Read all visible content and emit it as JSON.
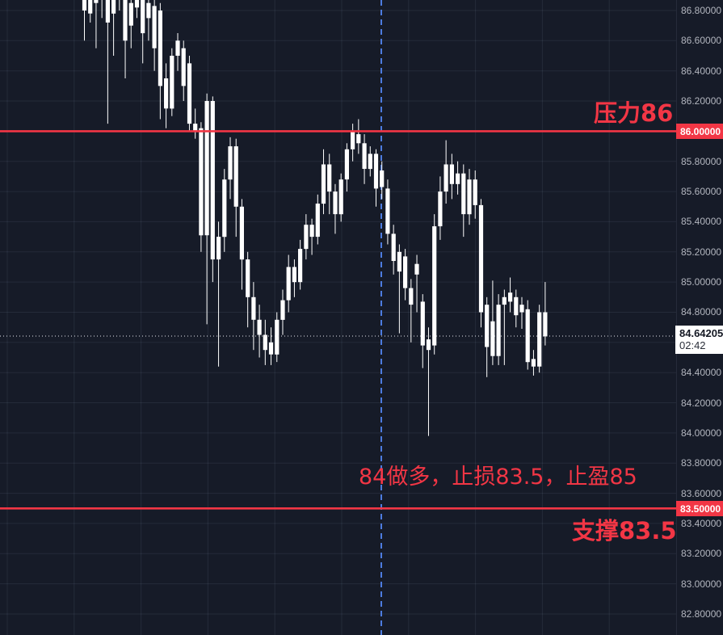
{
  "annotations": {
    "resistance_text": "压力86",
    "trade_note": "84做多，止损83.5，止盈85",
    "support_text": "支撑83.5"
  },
  "price_axis": {
    "tick_labels": [
      "86.80000",
      "86.60000",
      "86.40000",
      "86.20000",
      "85.80000",
      "85.60000",
      "85.40000",
      "85.20000",
      "85.00000",
      "84.80000",
      "84.40000",
      "84.20000",
      "84.00000",
      "83.80000",
      "83.60000",
      "83.40000",
      "83.20000",
      "83.00000",
      "82.80000"
    ],
    "resistance_tag": "86.00000",
    "support_tag": "83.50000",
    "last_price_tag": "84.64205",
    "last_price_time": "02:42"
  },
  "colors": {
    "background": "#161b28",
    "grid": "rgba(170,183,213,0.10)",
    "candle": "#ffffff",
    "level_red": "#f23645",
    "vline_blue": "#4d7ce0",
    "axis_text": "#b2b5be",
    "current_price_dotted": "#e8eaf0"
  },
  "chart_data": {
    "type": "candlestick",
    "title": "",
    "xlabel": "",
    "ylabel": "price",
    "ylim": [
      82.67,
      86.87
    ],
    "price_step": 0.2,
    "grid": true,
    "legend_position": "none",
    "levels": [
      {
        "name": "resistance",
        "price": 86.0,
        "label": "压力86"
      },
      {
        "name": "support",
        "price": 83.5,
        "label": "支撑83.5"
      }
    ],
    "last": {
      "price": 84.64205,
      "countdown": "02:42"
    },
    "vline_at_index": 51,
    "candles_ohlc_note": "values are [open,high,low,close]; all candles rendered white (direction not color-coded on this chart)",
    "candles": [
      [
        86.92,
        86.95,
        86.6,
        86.8
      ],
      [
        86.9,
        86.94,
        86.72,
        86.78
      ],
      [
        86.95,
        86.97,
        86.55,
        86.85
      ],
      [
        86.93,
        86.96,
        86.75,
        86.88
      ],
      [
        86.9,
        86.93,
        86.05,
        86.72
      ],
      [
        86.88,
        86.92,
        86.5,
        86.78
      ],
      [
        86.95,
        86.97,
        86.8,
        86.87
      ],
      [
        86.9,
        86.93,
        86.35,
        86.6
      ],
      [
        86.85,
        86.9,
        86.55,
        86.7
      ],
      [
        86.92,
        86.95,
        86.75,
        86.82
      ],
      [
        86.88,
        86.92,
        86.45,
        86.65
      ],
      [
        86.85,
        86.9,
        86.6,
        86.75
      ],
      [
        86.83,
        86.88,
        86.4,
        86.55
      ],
      [
        86.8,
        86.85,
        86.08,
        86.3
      ],
      [
        86.35,
        86.45,
        86.02,
        86.15
      ],
      [
        86.15,
        86.55,
        86.1,
        86.5
      ],
      [
        86.5,
        86.65,
        86.4,
        86.6
      ],
      [
        86.55,
        86.6,
        86.2,
        86.3
      ],
      [
        86.45,
        86.5,
        86.0,
        86.05
      ],
      [
        86.05,
        86.15,
        85.95,
        86.0
      ],
      [
        86.02,
        86.06,
        85.2,
        85.31
      ],
      [
        85.31,
        86.25,
        84.72,
        86.2
      ],
      [
        86.2,
        86.23,
        85.0,
        85.15
      ],
      [
        85.15,
        85.4,
        84.44,
        85.3
      ],
      [
        85.3,
        85.75,
        85.2,
        85.68
      ],
      [
        85.68,
        85.96,
        85.55,
        85.9
      ],
      [
        85.9,
        85.95,
        85.3,
        85.5
      ],
      [
        85.5,
        85.55,
        84.95,
        85.15
      ],
      [
        85.15,
        85.2,
        84.7,
        84.9
      ],
      [
        84.9,
        85.0,
        84.55,
        84.75
      ],
      [
        84.75,
        84.85,
        84.5,
        84.65
      ],
      [
        84.65,
        84.75,
        84.45,
        84.55
      ],
      [
        84.6,
        84.7,
        84.45,
        84.52
      ],
      [
        84.52,
        84.8,
        84.47,
        84.75
      ],
      [
        84.75,
        84.95,
        84.65,
        84.88
      ],
      [
        84.88,
        85.18,
        84.8,
        85.1
      ],
      [
        85.1,
        85.15,
        84.9,
        85.0
      ],
      [
        85.0,
        85.28,
        84.95,
        85.22
      ],
      [
        85.22,
        85.45,
        85.15,
        85.38
      ],
      [
        85.38,
        85.42,
        85.18,
        85.3
      ],
      [
        85.3,
        85.58,
        85.25,
        85.52
      ],
      [
        85.52,
        85.88,
        85.45,
        85.78
      ],
      [
        85.78,
        85.85,
        85.45,
        85.6
      ],
      [
        85.6,
        85.65,
        85.32,
        85.45
      ],
      [
        85.45,
        85.72,
        85.4,
        85.68
      ],
      [
        85.68,
        85.92,
        85.6,
        85.88
      ],
      [
        85.88,
        86.05,
        85.8,
        86.0
      ],
      [
        85.98,
        86.08,
        85.85,
        85.92
      ],
      [
        85.92,
        85.98,
        85.65,
        85.75
      ],
      [
        85.75,
        85.9,
        85.7,
        85.85
      ],
      [
        85.85,
        85.88,
        85.5,
        85.62
      ],
      [
        85.74,
        85.8,
        85.55,
        85.63
      ],
      [
        85.62,
        85.68,
        85.25,
        85.32
      ],
      [
        85.32,
        85.38,
        85.05,
        85.14
      ],
      [
        85.2,
        85.25,
        84.66,
        85.07
      ],
      [
        85.17,
        85.22,
        84.88,
        84.96
      ],
      [
        84.96,
        85.02,
        84.6,
        84.85
      ],
      [
        85.05,
        85.18,
        84.8,
        85.12
      ],
      [
        84.87,
        84.92,
        84.43,
        84.58
      ],
      [
        84.62,
        84.7,
        83.98,
        84.55
      ],
      [
        84.58,
        85.45,
        84.52,
        85.37
      ],
      [
        85.37,
        85.7,
        85.28,
        85.6
      ],
      [
        85.6,
        85.94,
        85.52,
        85.78
      ],
      [
        85.78,
        85.85,
        85.55,
        85.65
      ],
      [
        85.65,
        85.8,
        85.58,
        85.72
      ],
      [
        85.72,
        85.78,
        85.3,
        85.45
      ],
      [
        85.45,
        85.75,
        85.38,
        85.68
      ],
      [
        85.68,
        85.74,
        85.42,
        85.51
      ],
      [
        85.51,
        85.55,
        84.7,
        84.8
      ],
      [
        84.85,
        84.9,
        84.37,
        84.57
      ],
      [
        84.74,
        85.01,
        84.45,
        84.51
      ],
      [
        84.51,
        84.92,
        84.45,
        84.85
      ],
      [
        84.9,
        84.95,
        84.45,
        84.85
      ],
      [
        84.93,
        85.03,
        84.8,
        84.87
      ],
      [
        84.9,
        84.95,
        84.7,
        84.78
      ],
      [
        84.85,
        84.9,
        84.69,
        84.8
      ],
      [
        84.82,
        84.88,
        84.42,
        84.47
      ],
      [
        84.49,
        84.55,
        84.38,
        84.44
      ],
      [
        84.44,
        84.85,
        84.4,
        84.8
      ],
      [
        84.8,
        85.0,
        84.58,
        84.64
      ]
    ]
  }
}
